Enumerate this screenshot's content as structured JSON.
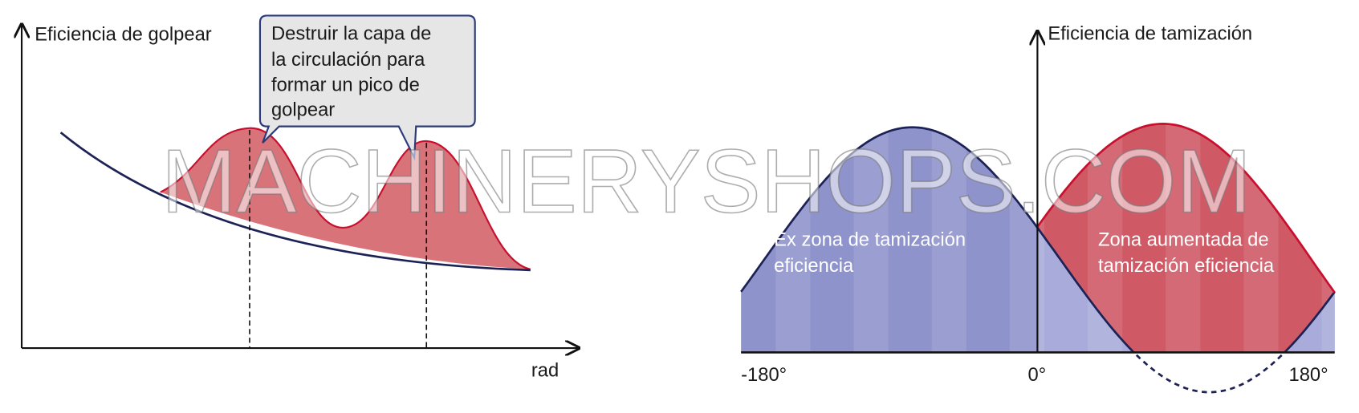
{
  "left": {
    "y_axis_label": "Eficiencia de golpear",
    "x_axis_label": "rad",
    "callout": {
      "lines": [
        "Destruir la capa de",
        "la circulación para",
        "formar un pico de",
        "golpear"
      ]
    }
  },
  "right": {
    "y_axis_label": "Eficiencia de tamización",
    "zone_old": {
      "lines": [
        "Ex zona de tamización",
        "eficiencia"
      ]
    },
    "zone_new": {
      "lines": [
        "Zona aumentada de",
        "tamización eficiencia"
      ]
    },
    "x_tick_labels": [
      "-180°",
      "0°",
      "180°"
    ]
  },
  "watermark": "MACHINERYSHOPS.COM"
}
